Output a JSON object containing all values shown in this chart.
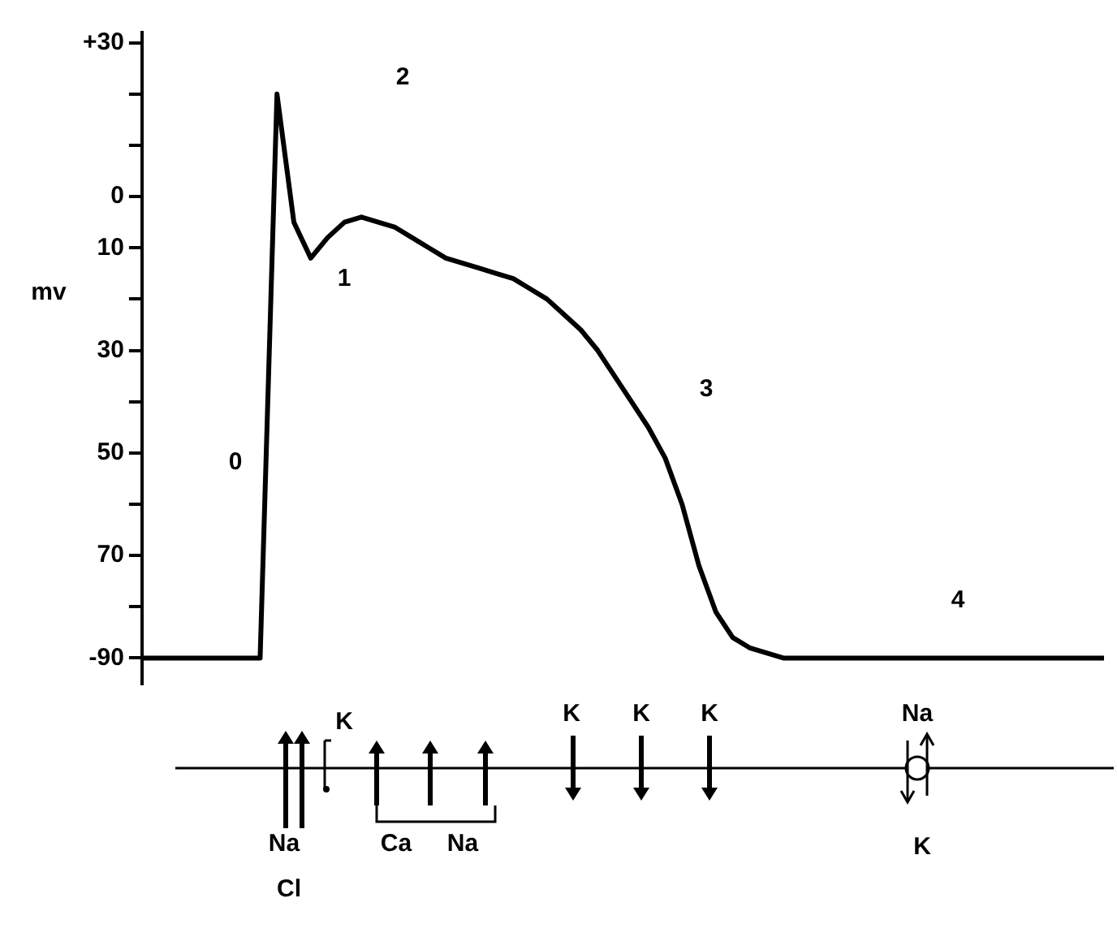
{
  "chart_data": {
    "type": "line",
    "ylabel": "mv",
    "categories": [
      null,
      null,
      null,
      null,
      null,
      null,
      null,
      null,
      null,
      null,
      null,
      null,
      null,
      null,
      null,
      null,
      null,
      null,
      null,
      null,
      null,
      null,
      null,
      null,
      null,
      null,
      null,
      null,
      null,
      null,
      null,
      null,
      null,
      null,
      null,
      null,
      null,
      null,
      null,
      null,
      null,
      null,
      null,
      null,
      null,
      null,
      null,
      null,
      null,
      null,
      null,
      null,
      null,
      null,
      null,
      null,
      null,
      null
    ],
    "series": [
      {
        "color": "#000000",
        "values": [
          -90,
          -90,
          -90,
          -90,
          -90,
          -90,
          -90,
          -90,
          20,
          -5,
          -12,
          -8,
          -5,
          -4,
          -5,
          -6,
          -8,
          -10,
          -12,
          -13,
          -14,
          -15,
          -16,
          -18,
          -20,
          -23,
          -26,
          -30,
          -35,
          -40,
          -45,
          -51,
          -60,
          -72,
          -81,
          -86,
          -88,
          -89,
          -90,
          -90,
          -90,
          -90,
          -90,
          -90,
          -90,
          -90,
          -90,
          -90,
          -90,
          -90,
          -90,
          -90,
          -90,
          -90,
          -90,
          -90,
          -90,
          -90
        ]
      }
    ],
    "ylim": [
      -95,
      32
    ],
    "yticks": [
      {
        "value": 30,
        "label": "+30"
      },
      {
        "value": 20,
        "label": null
      },
      {
        "value": 10,
        "label": null
      },
      {
        "value": 0,
        "label": "0"
      },
      {
        "value": -10,
        "label": "10"
      },
      {
        "value": -20,
        "label": null
      },
      {
        "value": -30,
        "label": "30"
      },
      {
        "value": -40,
        "label": null
      },
      {
        "value": -50,
        "label": "50"
      },
      {
        "value": -60,
        "label": null
      },
      {
        "value": -70,
        "label": "70"
      },
      {
        "value": -80,
        "label": null
      },
      {
        "value": -90,
        "label": "-90"
      }
    ],
    "tick_labels": "y",
    "grid": false,
    "legend": false,
    "marker": "none",
    "line_style": "solid",
    "annotations": [
      "0",
      "1",
      "2",
      "3",
      "4",
      "K",
      "K",
      "K",
      "K",
      "Na",
      "Na",
      "Cl",
      "Ca",
      "Na",
      "K"
    ]
  }
}
